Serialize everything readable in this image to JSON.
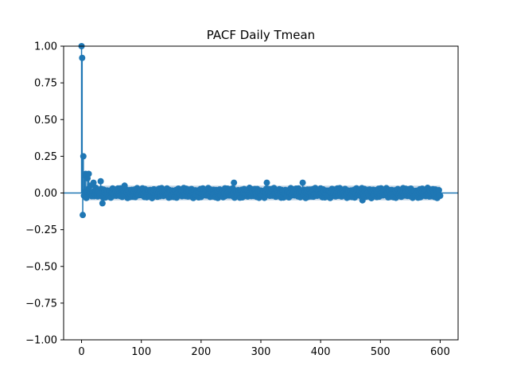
{
  "chart_data": {
    "type": "scatter",
    "title": "PACF Daily Tmean",
    "xlabel": "",
    "ylabel": "",
    "xlim": [
      -30,
      630
    ],
    "ylim": [
      -1.0,
      1.0
    ],
    "x_ticks": [
      0,
      100,
      200,
      300,
      400,
      500,
      600
    ],
    "x_tick_labels": [
      "0",
      "100",
      "200",
      "300",
      "400",
      "500",
      "600"
    ],
    "y_ticks": [
      -1.0,
      -0.75,
      -0.5,
      -0.25,
      0.0,
      0.25,
      0.5,
      0.75,
      1.0
    ],
    "y_tick_labels": [
      "−1.00",
      "−0.75",
      "−0.50",
      "−0.25",
      "0.00",
      "0.25",
      "0.50",
      "0.75",
      "1.00"
    ],
    "grid": false,
    "legend": "none",
    "max_lag": 600,
    "confidence_band": 0.05,
    "key_points": [
      {
        "lag": 0,
        "value": 1.0
      },
      {
        "lag": 1,
        "value": 0.92
      },
      {
        "lag": 2,
        "value": -0.15
      },
      {
        "lag": 3,
        "value": 0.25
      },
      {
        "lag": 5,
        "value": 0.12
      },
      {
        "lag": 7,
        "value": 0.13
      },
      {
        "lag": 10,
        "value": 0.1
      },
      {
        "lag": 12,
        "value": 0.13
      },
      {
        "lag": 15,
        "value": 0.05
      },
      {
        "lag": 20,
        "value": 0.07
      },
      {
        "lag": 32,
        "value": 0.08
      },
      {
        "lag": 35,
        "value": -0.07
      },
      {
        "lag": 72,
        "value": 0.05
      },
      {
        "lag": 255,
        "value": 0.07
      },
      {
        "lag": 310,
        "value": 0.07
      },
      {
        "lag": 370,
        "value": 0.07
      },
      {
        "lag": 470,
        "value": -0.05
      }
    ],
    "residual_amplitude": 0.035,
    "colors": {
      "marker": "#1f77b4",
      "band": "#b7cde0",
      "baseline": "#1f77b4"
    }
  }
}
